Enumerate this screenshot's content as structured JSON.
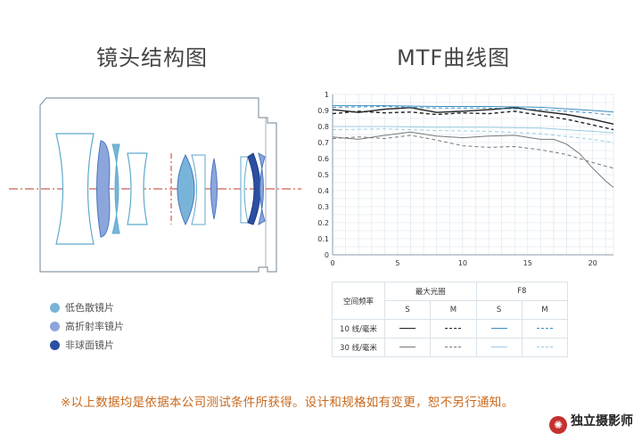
{
  "titles": {
    "left": "镜头结构图",
    "right": "MTF曲线图"
  },
  "legend": [
    {
      "label": "低色散镜片",
      "color": "#78b4d8"
    },
    {
      "label": "高折射率镜片",
      "color": "#8ca6dc"
    },
    {
      "label": "非球面镜片",
      "color": "#2a4fa3"
    }
  ],
  "table": {
    "row_header": "空间频率",
    "groups": [
      "最大光圈",
      "F8"
    ],
    "subs": [
      "S",
      "M",
      "S",
      "M"
    ],
    "rows": [
      "10 线/毫米",
      "30 线/毫米"
    ]
  },
  "disclaimer": "※以上数据均是依据本公司测试条件所获得。设计和规格如有变更，恕不另行通知。",
  "watermark": "独立摄影师",
  "chart_data": {
    "type": "line",
    "title": "MTF曲线图",
    "xlim": [
      0,
      21.6
    ],
    "ylim": [
      0,
      1
    ],
    "xticks": [
      0,
      5,
      10,
      15,
      20
    ],
    "yticks": [
      0,
      0.1,
      0.2,
      0.3,
      0.4,
      0.5,
      0.6,
      0.7,
      0.8,
      0.9,
      1
    ],
    "ytick_labels": [
      "0",
      "0.1",
      "0.2",
      "0.3",
      "0.4",
      "0.5",
      "0.6",
      "0.7",
      "0.8",
      "0.9",
      "1"
    ],
    "grid": true,
    "series": [
      {
        "name": "最大光圈 10线/毫米 S",
        "color": "#222222",
        "dash": "",
        "width": 1.4,
        "x": [
          0,
          2,
          4,
          6,
          8,
          10,
          12,
          14,
          16,
          18,
          20,
          21.6
        ],
        "y": [
          0.905,
          0.888,
          0.908,
          0.918,
          0.888,
          0.895,
          0.905,
          0.918,
          0.895,
          0.875,
          0.845,
          0.815
        ]
      },
      {
        "name": "最大光圈 10线/毫米 M",
        "color": "#222222",
        "dash": "4,3",
        "width": 1.4,
        "x": [
          0,
          2,
          4,
          6,
          8,
          10,
          12,
          14,
          16,
          18,
          20,
          21.6
        ],
        "y": [
          0.88,
          0.895,
          0.885,
          0.89,
          0.875,
          0.885,
          0.88,
          0.895,
          0.87,
          0.845,
          0.81,
          0.78
        ]
      },
      {
        "name": "最大光圈 30线/毫米 S",
        "color": "#777777",
        "dash": "",
        "width": 1,
        "x": [
          0,
          2,
          4,
          6,
          8,
          10,
          12,
          14,
          16,
          17,
          18,
          19,
          20,
          21,
          21.6
        ],
        "y": [
          0.735,
          0.72,
          0.745,
          0.765,
          0.74,
          0.73,
          0.74,
          0.745,
          0.72,
          0.72,
          0.69,
          0.63,
          0.54,
          0.46,
          0.42
        ]
      },
      {
        "name": "最大光圈 30线/毫米 M",
        "color": "#777777",
        "dash": "4,3",
        "width": 1,
        "x": [
          0,
          2,
          4,
          6,
          8,
          10,
          12,
          14,
          16,
          18,
          20,
          21.6
        ],
        "y": [
          0.725,
          0.735,
          0.725,
          0.745,
          0.715,
          0.68,
          0.67,
          0.675,
          0.655,
          0.625,
          0.575,
          0.54
        ]
      },
      {
        "name": "F8 10线/毫米 S",
        "color": "#3c8fc2",
        "dash": "",
        "width": 1,
        "x": [
          0,
          4,
          8,
          12,
          16,
          20,
          21.6
        ],
        "y": [
          0.93,
          0.93,
          0.925,
          0.925,
          0.92,
          0.9,
          0.89
        ]
      },
      {
        "name": "F8 10线/毫米 M",
        "color": "#3c8fc2",
        "dash": "4,3",
        "width": 1,
        "x": [
          0,
          4,
          8,
          12,
          16,
          20,
          21.6
        ],
        "y": [
          0.92,
          0.925,
          0.915,
          0.915,
          0.905,
          0.885,
          0.87
        ]
      },
      {
        "name": "F8 30线/毫米 S",
        "color": "#9ccbe3",
        "dash": "",
        "width": 1,
        "x": [
          0,
          4,
          8,
          12,
          16,
          20,
          21.6
        ],
        "y": [
          0.8,
          0.8,
          0.795,
          0.795,
          0.79,
          0.77,
          0.76
        ]
      },
      {
        "name": "F8 30线/毫米 M",
        "color": "#9ccbe3",
        "dash": "4,3",
        "width": 1,
        "x": [
          0,
          4,
          8,
          12,
          16,
          20,
          21.6
        ],
        "y": [
          0.78,
          0.785,
          0.775,
          0.77,
          0.755,
          0.72,
          0.7
        ]
      }
    ]
  }
}
